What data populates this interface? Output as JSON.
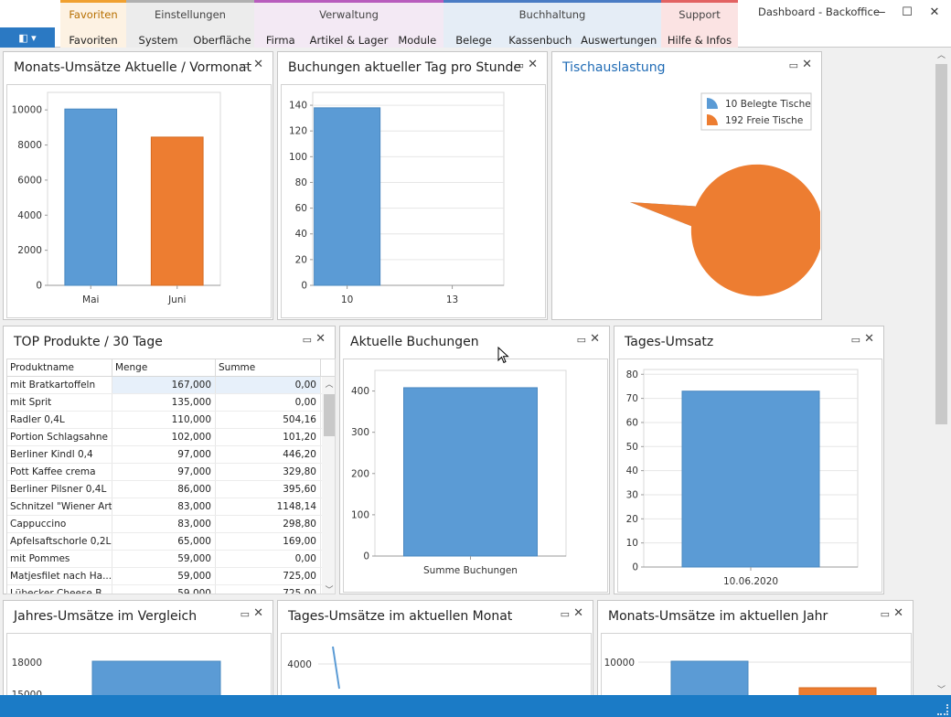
{
  "window": {
    "title": "Dashboard - Backoffice",
    "controls": [
      "—",
      "☐",
      "✕"
    ]
  },
  "ribbon": {
    "app_button": "◧ ▾",
    "groups": [
      {
        "name": "Favoriten",
        "tabs": [
          "Favoriten"
        ]
      },
      {
        "name": "Einstellungen",
        "tabs": [
          "System",
          "Oberfläche"
        ]
      },
      {
        "name": "Verwaltung",
        "tabs": [
          "Firma",
          "Artikel & Lager",
          "Module"
        ]
      },
      {
        "name": "Buchhaltung",
        "tabs": [
          "Belege",
          "Kassenbuch",
          "Auswertungen"
        ]
      },
      {
        "name": "Support",
        "tabs": [
          "Hilfe & Infos"
        ]
      }
    ]
  },
  "panels": {
    "monats_umsaetze": {
      "title": "Monats-Umsätze Aktuelle / Vormonat"
    },
    "buchungen_tag": {
      "title": "Buchungen aktueller Tag pro Stunde"
    },
    "tischauslastung": {
      "title": "Tischauslastung"
    },
    "top_produkte": {
      "title": "TOP Produkte / 30 Tage"
    },
    "aktuelle_buchungen": {
      "title": "Aktuelle Buchungen"
    },
    "tages_umsatz": {
      "title": "Tages-Umsatz"
    },
    "jahres_umsaetze": {
      "title": "Jahres-Umsätze im Vergleich"
    },
    "tages_umsaetze_monat": {
      "title": "Tages-Umsätze im aktuellen Monat"
    },
    "monats_umsaetze_jahr": {
      "title": "Monats-Umsätze im aktuellen Jahr"
    }
  },
  "panel_controls": {
    "maximize": "▭",
    "close": "✕"
  },
  "colors": {
    "blue": "#5b9bd5",
    "orange": "#ed7d31",
    "accent": "#1b7bc6"
  },
  "table": {
    "columns": [
      "Produktname",
      "Menge",
      "Summe"
    ],
    "rows": [
      [
        "mit Bratkartoffeln",
        "167,000",
        "0,00"
      ],
      [
        "mit Sprit",
        "135,000",
        "0,00"
      ],
      [
        "Radler 0,4L",
        "110,000",
        "504,16"
      ],
      [
        "Portion Schlagsahne",
        "102,000",
        "101,20"
      ],
      [
        "Berliner Kindl 0,4",
        "97,000",
        "446,20"
      ],
      [
        "Pott Kaffee crema",
        "97,000",
        "329,80"
      ],
      [
        "Berliner Pilsner 0,4L",
        "86,000",
        "395,60"
      ],
      [
        "Schnitzel \"Wiener Art\"",
        "83,000",
        "1148,14"
      ],
      [
        "Cappuccino",
        "83,000",
        "298,80"
      ],
      [
        "Apfelsaftschorle 0,2L",
        "65,000",
        "169,00"
      ],
      [
        "mit Pommes",
        "59,000",
        "0,00"
      ],
      [
        "Matjesfilet nach Ha...",
        "59,000",
        "725,00"
      ],
      [
        "Lübecker Cheese B...",
        "59,000",
        "725,00"
      ]
    ]
  },
  "chart_data": [
    {
      "type": "bar",
      "title": "Monats-Umsätze Aktuelle / Vormonat",
      "categories": [
        "Mai",
        "Juni"
      ],
      "values": [
        10050,
        8450
      ],
      "colors": [
        "#5b9bd5",
        "#ed7d31"
      ],
      "ylim": [
        0,
        11000
      ],
      "yticks": [
        0,
        2000,
        4000,
        6000,
        8000,
        10000
      ]
    },
    {
      "type": "bar",
      "title": "Buchungen aktueller Tag pro Stunde",
      "categories": [
        "10",
        "13"
      ],
      "values": [
        138,
        0
      ],
      "ylim": [
        0,
        150
      ],
      "yticks": [
        0,
        20,
        40,
        60,
        80,
        100,
        120,
        140
      ]
    },
    {
      "type": "pie",
      "title": "Tischauslastung",
      "labels": [
        "10 Belegte Tische",
        "192 Freie Tische"
      ],
      "values": [
        10,
        192
      ],
      "colors": [
        "#5b9bd5",
        "#ed7d31"
      ],
      "legend": "top-right"
    },
    {
      "type": "bar",
      "title": "Aktuelle Buchungen",
      "categories": [
        "Summe Buchungen"
      ],
      "values": [
        408
      ],
      "ylim": [
        0,
        450
      ],
      "yticks": [
        0,
        100,
        200,
        300,
        400
      ]
    },
    {
      "type": "bar",
      "title": "Tages-Umsatz",
      "categories": [
        "10.06.2020"
      ],
      "values": [
        73
      ],
      "ylim": [
        0,
        82
      ],
      "yticks": [
        0,
        10,
        20,
        30,
        40,
        50,
        60,
        70,
        80
      ]
    },
    {
      "type": "bar",
      "title": "Jahres-Umsätze im Vergleich",
      "yticks": [
        15000,
        18000
      ],
      "values": [
        18300
      ]
    },
    {
      "type": "line",
      "title": "Tages-Umsätze im aktuellen Monat",
      "yticks": [
        4000
      ],
      "values": [
        4500,
        3400
      ]
    },
    {
      "type": "bar",
      "title": "Monats-Umsätze im aktuellen Jahr",
      "yticks": [
        10000
      ],
      "values": [
        10050,
        8450
      ]
    }
  ]
}
